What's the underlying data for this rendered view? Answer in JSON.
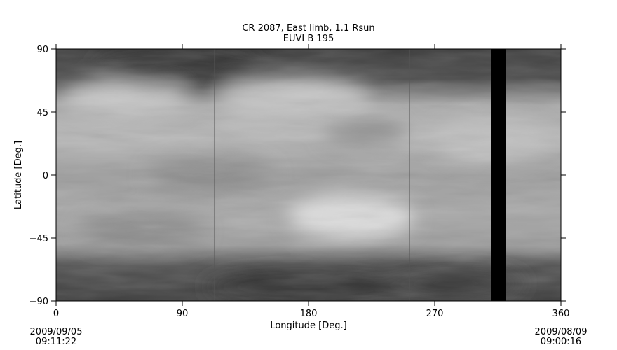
{
  "chart_data": {
    "type": "heatmap",
    "title": "CR 2087, East limb, 1.1 Rsun",
    "subtitle": "EUVI B 195",
    "xlabel": "Longitude [Deg.]",
    "ylabel": "Latitude [Deg.]",
    "xlim": [
      0,
      360
    ],
    "ylim": [
      -90,
      90
    ],
    "xticks": [
      "0",
      "90",
      "180",
      "270",
      "360"
    ],
    "yticks": [
      "-90",
      "-45",
      "0",
      "45",
      "90"
    ],
    "colormap": "grayscale",
    "data_gap_longitude": [
      310,
      321
    ],
    "seam_longitudes": [
      113,
      252
    ],
    "start_date": "2009/09/05",
    "start_time": "09:11:22",
    "end_date": "2009/08/09",
    "end_time": "09:00:16"
  }
}
